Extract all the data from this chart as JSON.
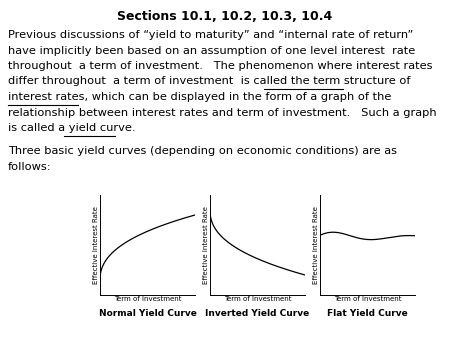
{
  "title": "Sections 10.1, 10.2, 10.3, 10.4",
  "para_lines": [
    "Previous discussions of “yield to maturity” and “internal rate of return”",
    "have implicitly been based on an assumption of one level interest  rate",
    "throughout  a term of investment.   The phenomenon where interest rates",
    "differ throughout  a term of investment  is called the term structure of",
    "interest rates, which can be displayed in the form of a graph of the",
    "relationship between interest rates and term of investment.   Such a graph",
    "is called a yield curve."
  ],
  "para2_line1": "Three basic yield curves (depending on economic conditions) are as",
  "para2_line2": "follows:",
  "curve_labels": [
    "Normal Yield Curve",
    "Inverted Yield Curve",
    "Flat Yield Curve"
  ],
  "xlabel": "Term of Investment",
  "ylabel": "Effective Interest Rate",
  "title_fontsize": 9,
  "body_fontsize": 8.2,
  "label_fontsize": 5.8,
  "curve_label_fontsize": 6.5,
  "axis_label_fontsize": 5.0
}
